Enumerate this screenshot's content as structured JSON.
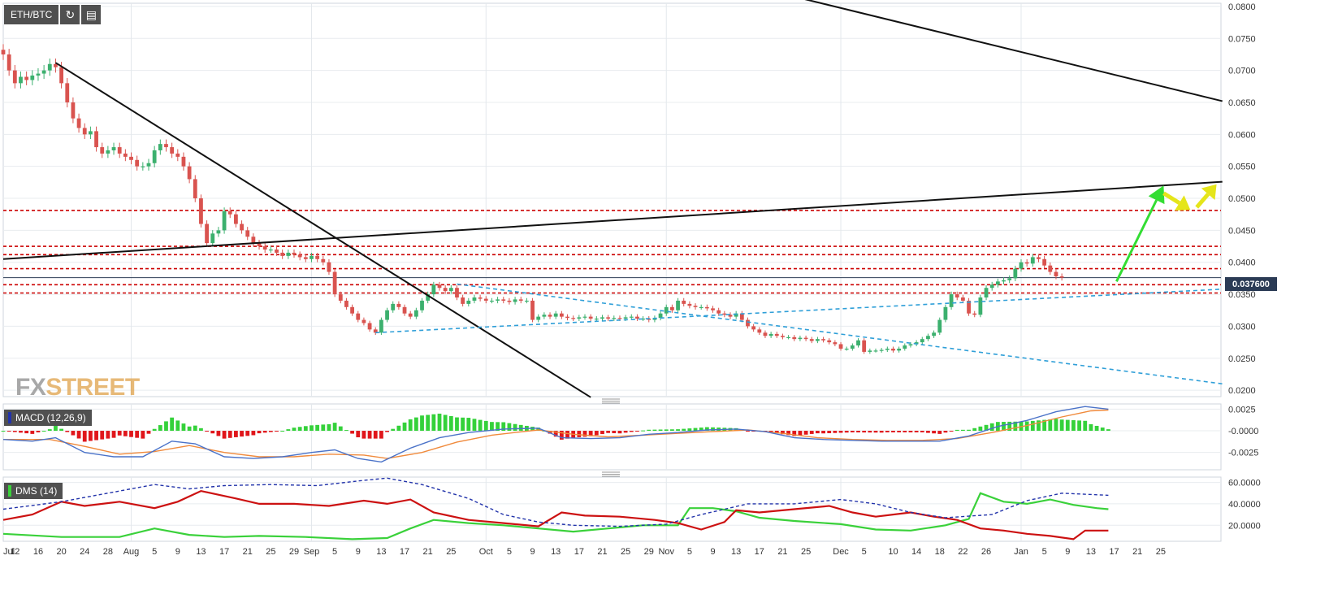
{
  "toolbar": {
    "symbol": "ETH/BTC",
    "refresh_icon": "refresh-icon",
    "calendar_icon": "calendar-icon"
  },
  "logo": {
    "part1": "FX",
    "part2": "STREET"
  },
  "colors": {
    "up": "#3cb06e",
    "down": "#d9534f",
    "resistance": "#cc0000",
    "trend_black": "#111111",
    "trend_blue": "#2f9fd8",
    "arrow_green": "#33dd33",
    "arrow_yellow": "#e5e51a",
    "macd_line": "#4a72c8",
    "signal_line": "#f08a3c",
    "di_plus": "#3ad13a",
    "di_minus": "#cc1111",
    "adx": "#2233aa"
  },
  "price_tag": "0.037600",
  "chart_data": [
    {
      "type": "candlestick",
      "ylim": [
        0.019,
        0.0805
      ],
      "yticks": [
        "0.0800",
        "0.0750",
        "0.0700",
        "0.0650",
        "0.0600",
        "0.0550",
        "0.0500",
        "0.0450",
        "0.0400",
        "0.0350",
        "0.0300",
        "0.0250",
        "0.0200"
      ],
      "xticks": [
        {
          "label": "Jul",
          "d": 0
        },
        {
          "label": "12",
          "d": 2
        },
        {
          "label": "16",
          "d": 6
        },
        {
          "label": "20",
          "d": 10
        },
        {
          "label": "24",
          "d": 14
        },
        {
          "label": "28",
          "d": 18
        },
        {
          "label": "Aug",
          "d": 22
        },
        {
          "label": "5",
          "d": 26
        },
        {
          "label": "9",
          "d": 30
        },
        {
          "label": "13",
          "d": 34
        },
        {
          "label": "17",
          "d": 38
        },
        {
          "label": "21",
          "d": 42
        },
        {
          "label": "25",
          "d": 46
        },
        {
          "label": "29",
          "d": 50
        },
        {
          "label": "Sep",
          "d": 53
        },
        {
          "label": "5",
          "d": 57
        },
        {
          "label": "9",
          "d": 61
        },
        {
          "label": "13",
          "d": 65
        },
        {
          "label": "17",
          "d": 69
        },
        {
          "label": "21",
          "d": 73
        },
        {
          "label": "25",
          "d": 77
        },
        {
          "label": "Oct",
          "d": 83
        },
        {
          "label": "5",
          "d": 87
        },
        {
          "label": "9",
          "d": 91
        },
        {
          "label": "13",
          "d": 95
        },
        {
          "label": "17",
          "d": 99
        },
        {
          "label": "21",
          "d": 103
        },
        {
          "label": "25",
          "d": 107
        },
        {
          "label": "29",
          "d": 111
        },
        {
          "label": "Nov",
          "d": 114
        },
        {
          "label": "5",
          "d": 118
        },
        {
          "label": "9",
          "d": 122
        },
        {
          "label": "13",
          "d": 126
        },
        {
          "label": "17",
          "d": 130
        },
        {
          "label": "21",
          "d": 134
        },
        {
          "label": "25",
          "d": 138
        },
        {
          "label": "Dec",
          "d": 144
        },
        {
          "label": "5",
          "d": 148
        },
        {
          "label": "10",
          "d": 153
        },
        {
          "label": "14",
          "d": 157
        },
        {
          "label": "18",
          "d": 161
        },
        {
          "label": "22",
          "d": 165
        },
        {
          "label": "26",
          "d": 169
        },
        {
          "label": "Jan",
          "d": 175
        },
        {
          "label": "5",
          "d": 179
        },
        {
          "label": "9",
          "d": 183
        },
        {
          "label": "13",
          "d": 187
        },
        {
          "label": "17",
          "d": 191
        },
        {
          "label": "21",
          "d": 195
        },
        {
          "label": "25",
          "d": 199
        }
      ],
      "last_price": 0.0376,
      "resistance_levels": [
        0.0481,
        0.0425,
        0.0412,
        0.039,
        0.0365,
        0.0352
      ],
      "close": [
        0.0725,
        0.07,
        0.068,
        0.069,
        0.0685,
        0.0692,
        0.0695,
        0.07,
        0.071,
        0.0705,
        0.068,
        0.065,
        0.0625,
        0.061,
        0.06,
        0.0605,
        0.058,
        0.057,
        0.0575,
        0.058,
        0.057,
        0.0565,
        0.056,
        0.055,
        0.055,
        0.0555,
        0.0575,
        0.0585,
        0.058,
        0.057,
        0.0565,
        0.055,
        0.053,
        0.05,
        0.046,
        0.043,
        0.0445,
        0.045,
        0.048,
        0.0475,
        0.046,
        0.045,
        0.044,
        0.043,
        0.0425,
        0.042,
        0.042,
        0.0415,
        0.041,
        0.0415,
        0.0412,
        0.0408,
        0.0405,
        0.041,
        0.0405,
        0.04,
        0.0385,
        0.035,
        0.034,
        0.033,
        0.032,
        0.031,
        0.0305,
        0.0295,
        0.029,
        0.031,
        0.0325,
        0.0335,
        0.033,
        0.032,
        0.0315,
        0.0325,
        0.034,
        0.035,
        0.0365,
        0.036,
        0.0355,
        0.036,
        0.0345,
        0.0335,
        0.034,
        0.0345,
        0.0343,
        0.034,
        0.034,
        0.0342,
        0.034,
        0.0338,
        0.0342,
        0.034,
        0.034,
        0.031,
        0.0315,
        0.0318,
        0.0315,
        0.032,
        0.0315,
        0.0313,
        0.0312,
        0.0314,
        0.0315,
        0.0312,
        0.0312,
        0.0314,
        0.0312,
        0.0313,
        0.0312,
        0.0314,
        0.0315,
        0.0312,
        0.0312,
        0.031,
        0.0313,
        0.032,
        0.033,
        0.0325,
        0.034,
        0.0335,
        0.0332,
        0.033,
        0.033,
        0.0328,
        0.0325,
        0.032,
        0.0318,
        0.0315,
        0.032,
        0.031,
        0.03,
        0.0295,
        0.029,
        0.0285,
        0.0288,
        0.0285,
        0.0283,
        0.0283,
        0.028,
        0.0282,
        0.028,
        0.0277,
        0.028,
        0.0278,
        0.0275,
        0.0272,
        0.0265,
        0.0265,
        0.027,
        0.0278,
        0.026,
        0.0262,
        0.0262,
        0.0263,
        0.0265,
        0.0262,
        0.0265,
        0.027,
        0.0272,
        0.0275,
        0.028,
        0.0285,
        0.029,
        0.031,
        0.033,
        0.035,
        0.0345,
        0.034,
        0.032,
        0.0318,
        0.0345,
        0.036,
        0.0365,
        0.037,
        0.0372,
        0.0375,
        0.039,
        0.04,
        0.0398,
        0.0408,
        0.0405,
        0.0395,
        0.0385,
        0.0378,
        0.0376
      ],
      "trendlines": {
        "black": [
          {
            "d1": 137.5,
            "v1": 0.0812,
            "d2": 209.6,
            "v2": 0.0652
          },
          {
            "d1": 0,
            "v1": 0.0405,
            "d2": 209.6,
            "v2": 0.0526
          },
          {
            "d1": 9,
            "v1": 0.0712,
            "d2": 101,
            "v2": 0.0189
          }
        ],
        "blue": [
          {
            "d1": 64,
            "v1": 0.029,
            "d2": 209.6,
            "v2": 0.0358
          },
          {
            "d1": 78,
            "v1": 0.0366,
            "d2": 209.6,
            "v2": 0.021
          }
        ]
      },
      "arrows": [
        {
          "color": "green",
          "d1": 191.4,
          "v1": 0.037,
          "d2": 199.5,
          "v2": 0.052
        },
        {
          "color": "yellow",
          "d1": 199.5,
          "v1": 0.0508,
          "d2": 204.1,
          "v2": 0.0482
        },
        {
          "color": "yellow",
          "d1": 205.2,
          "v1": 0.0486,
          "d2": 208.6,
          "v2": 0.0522
        }
      ]
    },
    {
      "type": "macd",
      "name": "MACD (12,26,9)",
      "ylim": [
        -0.0045,
        0.0031
      ],
      "yticks": [
        {
          "label": "0.0025",
          "v": 0.0025
        },
        {
          "label": "-0.0000",
          "v": 0
        },
        {
          "label": "-0.0025",
          "v": -0.0025
        }
      ],
      "macd": [
        [
          0,
          -0.001
        ],
        [
          5,
          -0.0012
        ],
        [
          9,
          -0.0008
        ],
        [
          14,
          -0.0025
        ],
        [
          19,
          -0.003
        ],
        [
          24,
          -0.003
        ],
        [
          29,
          -0.0012
        ],
        [
          33,
          -0.0015
        ],
        [
          38,
          -0.003
        ],
        [
          43,
          -0.0032
        ],
        [
          48,
          -0.003
        ],
        [
          53,
          -0.0025
        ],
        [
          57,
          -0.0022
        ],
        [
          61,
          -0.0032
        ],
        [
          65,
          -0.0036
        ],
        [
          70,
          -0.002
        ],
        [
          75,
          -0.0008
        ],
        [
          80,
          -0.0002
        ],
        [
          86,
          0.0002
        ],
        [
          92,
          0.0003
        ],
        [
          96,
          -0.0008
        ],
        [
          101,
          -0.0009
        ],
        [
          106,
          -0.0008
        ],
        [
          111,
          -0.0004
        ],
        [
          116,
          -0.0002
        ],
        [
          121,
          0.0001
        ],
        [
          126,
          0.0002
        ],
        [
          131,
          -0.0001
        ],
        [
          136,
          -0.0008
        ],
        [
          141,
          -0.001
        ],
        [
          146,
          -0.0011
        ],
        [
          151,
          -0.0012
        ],
        [
          156,
          -0.0012
        ],
        [
          161,
          -0.0012
        ],
        [
          166,
          -0.0006
        ],
        [
          171,
          0.0005
        ],
        [
          176,
          0.0012
        ],
        [
          181,
          0.0022
        ],
        [
          186,
          0.0028
        ],
        [
          190,
          0.0025
        ]
      ],
      "signal": [
        [
          0,
          -0.001
        ],
        [
          8,
          -0.001
        ],
        [
          14,
          -0.0018
        ],
        [
          20,
          -0.0027
        ],
        [
          26,
          -0.0024
        ],
        [
          32,
          -0.0017
        ],
        [
          38,
          -0.0025
        ],
        [
          44,
          -0.003
        ],
        [
          50,
          -0.003
        ],
        [
          56,
          -0.0027
        ],
        [
          62,
          -0.0028
        ],
        [
          66,
          -0.0032
        ],
        [
          72,
          -0.0025
        ],
        [
          78,
          -0.0013
        ],
        [
          84,
          -0.0005
        ],
        [
          92,
          0.0001
        ],
        [
          98,
          -0.0004
        ],
        [
          104,
          -0.0007
        ],
        [
          110,
          -0.0005
        ],
        [
          116,
          -0.0003
        ],
        [
          122,
          -0.0001
        ],
        [
          128,
          0.0001
        ],
        [
          134,
          -0.0003
        ],
        [
          140,
          -0.0008
        ],
        [
          146,
          -0.001
        ],
        [
          152,
          -0.0011
        ],
        [
          158,
          -0.0011
        ],
        [
          164,
          -0.0009
        ],
        [
          170,
          -0.0002
        ],
        [
          176,
          0.0006
        ],
        [
          182,
          0.0016
        ],
        [
          187,
          0.0023
        ],
        [
          190,
          0.0024
        ]
      ]
    },
    {
      "type": "dms",
      "name": "DMS (14)",
      "ylim": [
        5,
        65
      ],
      "yticks": [
        {
          "label": "60.0000",
          "v": 60
        },
        {
          "label": "40.0000",
          "v": 40
        },
        {
          "label": "20.0000",
          "v": 20
        }
      ],
      "adx": [
        [
          0,
          35
        ],
        [
          10,
          42
        ],
        [
          20,
          52
        ],
        [
          26,
          58
        ],
        [
          32,
          54
        ],
        [
          38,
          57
        ],
        [
          46,
          58
        ],
        [
          54,
          57
        ],
        [
          62,
          62
        ],
        [
          66,
          64
        ],
        [
          72,
          58
        ],
        [
          80,
          45
        ],
        [
          86,
          30
        ],
        [
          92,
          23
        ],
        [
          98,
          20
        ],
        [
          106,
          19
        ],
        [
          114,
          21
        ],
        [
          120,
          30
        ],
        [
          128,
          40
        ],
        [
          136,
          40
        ],
        [
          144,
          44
        ],
        [
          150,
          40
        ],
        [
          156,
          32
        ],
        [
          162,
          27
        ],
        [
          170,
          30
        ],
        [
          176,
          43
        ],
        [
          182,
          50
        ],
        [
          190,
          48
        ]
      ],
      "di_plus": [
        [
          0,
          12
        ],
        [
          10,
          9
        ],
        [
          20,
          9
        ],
        [
          26,
          17
        ],
        [
          32,
          11
        ],
        [
          38,
          9
        ],
        [
          44,
          10
        ],
        [
          52,
          9
        ],
        [
          60,
          7
        ],
        [
          66,
          8
        ],
        [
          70,
          17
        ],
        [
          74,
          25
        ],
        [
          80,
          22
        ],
        [
          86,
          20
        ],
        [
          92,
          17
        ],
        [
          98,
          14
        ],
        [
          104,
          17
        ],
        [
          110,
          20
        ],
        [
          116,
          20
        ],
        [
          118,
          36
        ],
        [
          122,
          36
        ],
        [
          126,
          33
        ],
        [
          130,
          27
        ],
        [
          136,
          24
        ],
        [
          144,
          21
        ],
        [
          150,
          16
        ],
        [
          156,
          15
        ],
        [
          162,
          20
        ],
        [
          166,
          26
        ],
        [
          168,
          50
        ],
        [
          172,
          42
        ],
        [
          176,
          40
        ],
        [
          180,
          44
        ],
        [
          184,
          39
        ],
        [
          188,
          36
        ],
        [
          190,
          35
        ]
      ],
      "di_minus": [
        [
          0,
          25
        ],
        [
          5,
          30
        ],
        [
          10,
          42
        ],
        [
          14,
          38
        ],
        [
          20,
          42
        ],
        [
          26,
          36
        ],
        [
          30,
          42
        ],
        [
          34,
          52
        ],
        [
          40,
          45
        ],
        [
          44,
          40
        ],
        [
          50,
          40
        ],
        [
          56,
          38
        ],
        [
          62,
          43
        ],
        [
          66,
          40
        ],
        [
          70,
          44
        ],
        [
          74,
          32
        ],
        [
          80,
          25
        ],
        [
          86,
          22
        ],
        [
          92,
          19
        ],
        [
          96,
          32
        ],
        [
          100,
          29
        ],
        [
          106,
          28
        ],
        [
          112,
          25
        ],
        [
          116,
          22
        ],
        [
          120,
          16
        ],
        [
          124,
          23
        ],
        [
          126,
          34
        ],
        [
          130,
          32
        ],
        [
          136,
          35
        ],
        [
          142,
          38
        ],
        [
          146,
          32
        ],
        [
          150,
          28
        ],
        [
          156,
          32
        ],
        [
          160,
          28
        ],
        [
          164,
          25
        ],
        [
          168,
          17
        ],
        [
          172,
          15
        ],
        [
          176,
          12
        ],
        [
          180,
          10
        ],
        [
          184,
          7
        ],
        [
          186,
          15
        ],
        [
          190,
          15
        ]
      ]
    }
  ]
}
